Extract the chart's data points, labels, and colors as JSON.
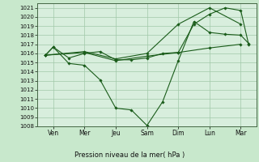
{
  "title": "",
  "xlabel": "Pression niveau de la mer( hPa )",
  "background_color": "#c8e8cc",
  "plot_bg_color": "#d8eedd",
  "grid_color": "#a0c8a8",
  "line_color": "#1a5c1a",
  "xlim": [
    -0.5,
    13.5
  ],
  "ylim": [
    1008,
    1021.5
  ],
  "yticks": [
    1008,
    1009,
    1010,
    1011,
    1012,
    1013,
    1014,
    1015,
    1016,
    1017,
    1018,
    1019,
    1020,
    1021
  ],
  "xtick_labels": [
    "Ven",
    "Mer",
    "Jeu",
    "Sam",
    "Dim",
    "Lun",
    "Mar"
  ],
  "xtick_positions": [
    0.5,
    2.5,
    4.5,
    6.5,
    8.5,
    10.5,
    12.5
  ],
  "line1_x": [
    0.0,
    0.5,
    1.5,
    2.5,
    3.5,
    4.5,
    5.5,
    6.5,
    7.5,
    8.5,
    9.5,
    10.5,
    11.5,
    12.5,
    13.0
  ],
  "line1_y": [
    1015.8,
    1016.7,
    1014.9,
    1014.7,
    1013.1,
    1010.0,
    1009.8,
    1008.1,
    1010.7,
    1015.2,
    1019.5,
    1018.3,
    1018.1,
    1018.0,
    1017.1
  ],
  "line2_x": [
    0.0,
    0.5,
    1.5,
    2.5,
    3.5,
    4.5,
    5.5,
    6.5,
    7.5,
    8.5,
    9.5,
    10.5,
    11.5,
    12.5,
    13.0
  ],
  "line2_y": [
    1015.8,
    1016.7,
    1015.5,
    1016.0,
    1016.2,
    1015.3,
    1015.3,
    1015.5,
    1016.0,
    1016.1,
    1019.2,
    1020.3,
    1021.0,
    1020.7,
    1017.0
  ],
  "line3_x": [
    0.0,
    2.5,
    4.5,
    6.5,
    8.5,
    10.5,
    12.5
  ],
  "line3_y": [
    1015.8,
    1016.1,
    1015.2,
    1015.7,
    1016.1,
    1016.6,
    1017.0
  ],
  "line4_x": [
    0.0,
    2.5,
    4.5,
    6.5,
    8.5,
    10.5,
    12.5
  ],
  "line4_y": [
    1015.8,
    1016.2,
    1015.4,
    1016.0,
    1019.2,
    1021.0,
    1019.2
  ]
}
